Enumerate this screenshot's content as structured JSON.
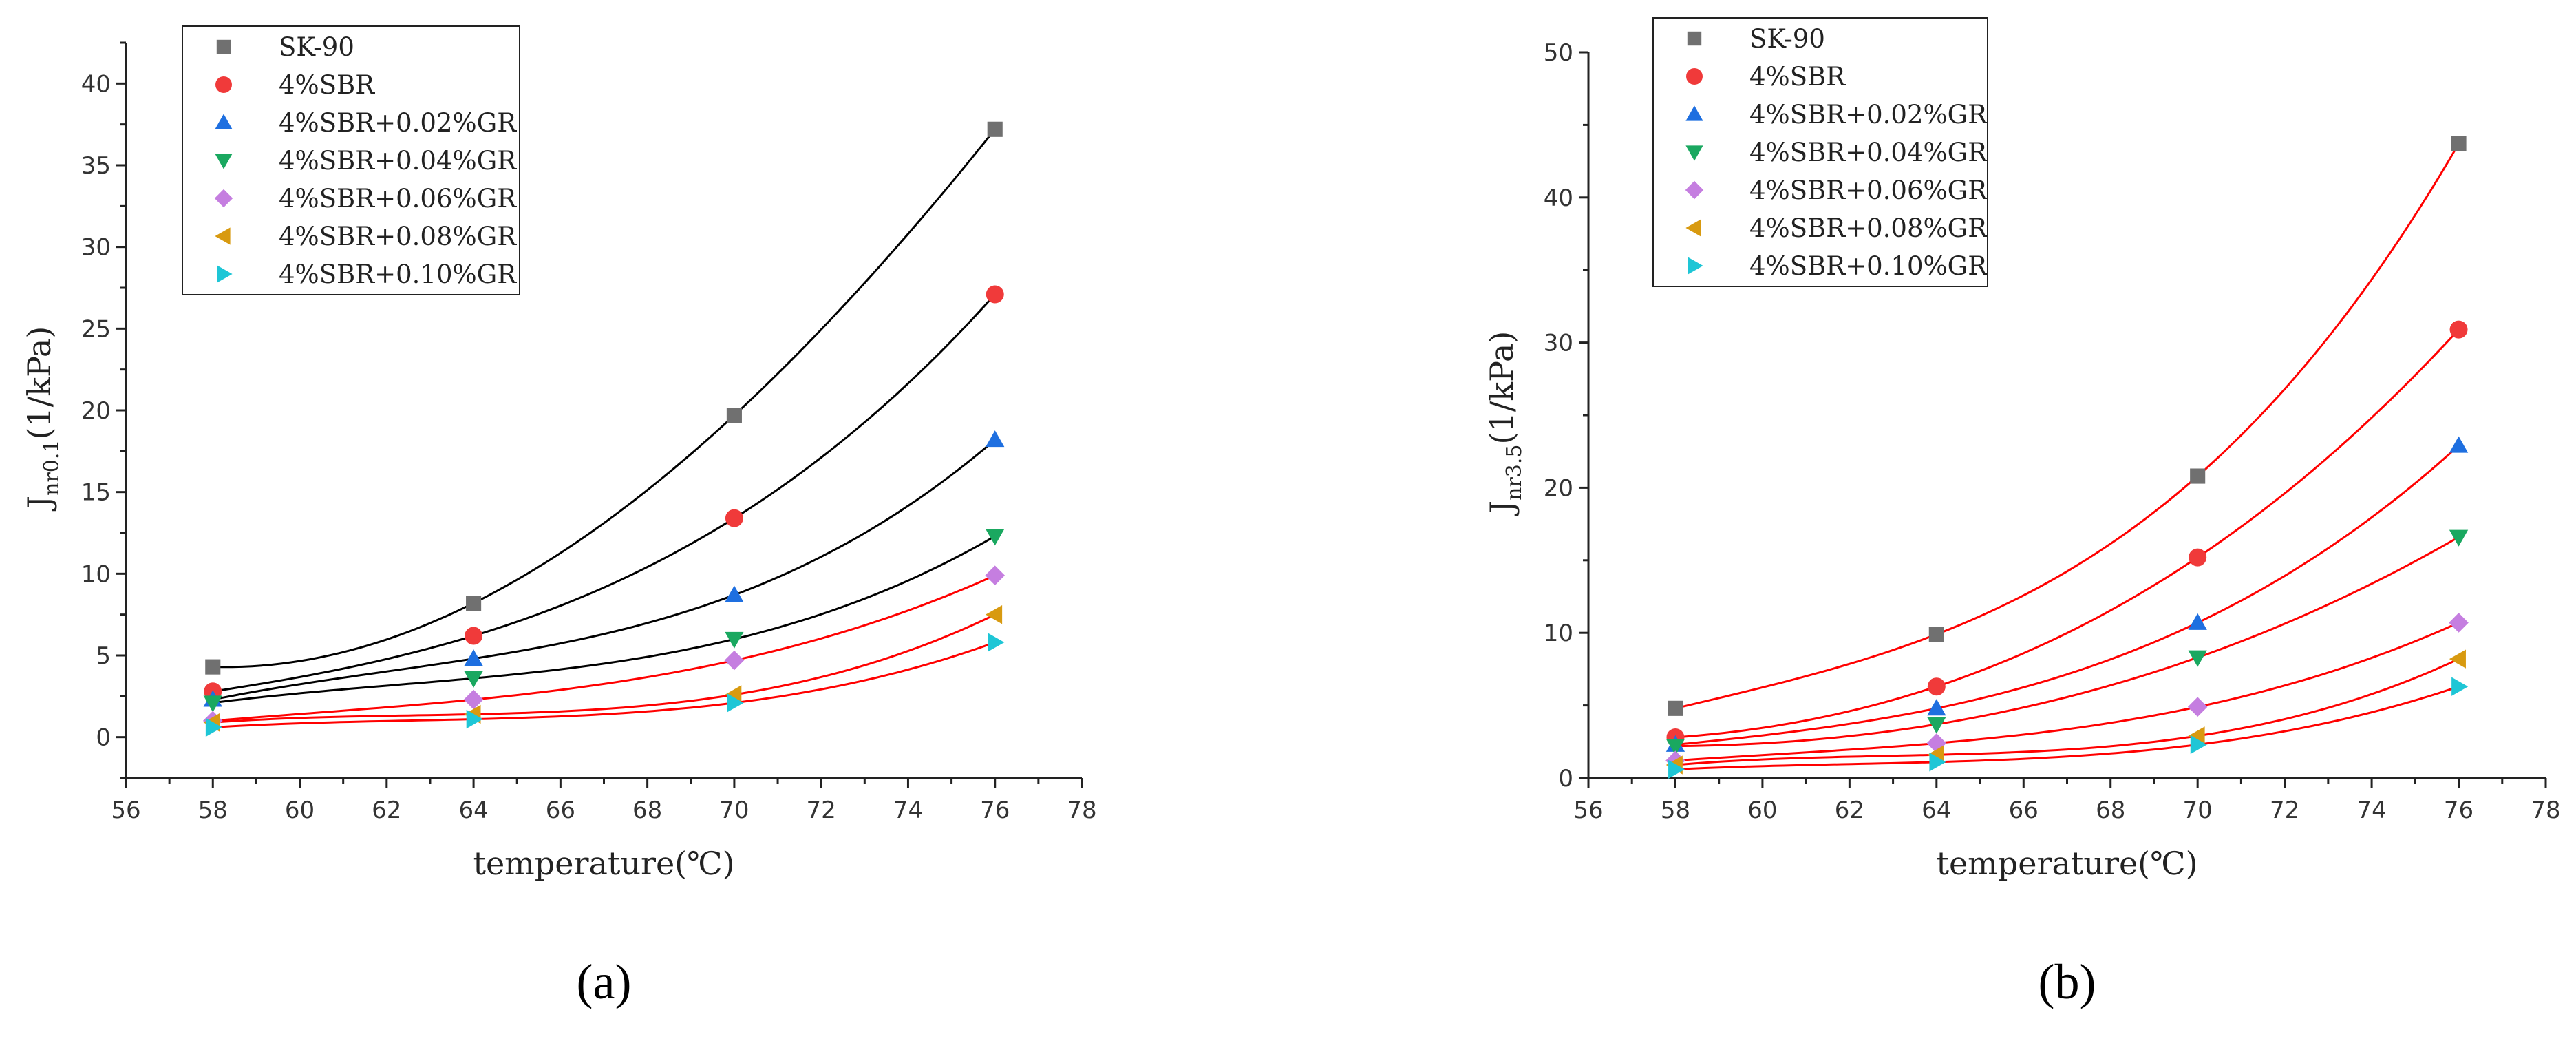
{
  "series_styles": [
    {
      "name": "SK-90",
      "marker": "square",
      "color": "#707070"
    },
    {
      "name": "4%SBR",
      "marker": "circle",
      "color": "#f03a3a"
    },
    {
      "name": "4%SBR+0.02%GR",
      "marker": "triangle-up",
      "color": "#1e6fe0"
    },
    {
      "name": "4%SBR+0.04%GR",
      "marker": "triangle-down",
      "color": "#1aa860"
    },
    {
      "name": "4%SBR+0.06%GR",
      "marker": "diamond",
      "color": "#c57ee0"
    },
    {
      "name": "4%SBR+0.08%GR",
      "marker": "triangle-left",
      "color": "#d89a10"
    },
    {
      "name": "4%SBR+0.10%GR",
      "marker": "triangle-right",
      "color": "#1ec6d6"
    }
  ],
  "chart_data": [
    {
      "type": "scatter",
      "panel_label": "(a)",
      "xlabel": "temperature(℃)",
      "ylabel_main": "J",
      "ylabel_sub": "nr0.1",
      "ylabel_unit": "(1/kPa)",
      "xlim": [
        56,
        78
      ],
      "ylim": [
        -2.5,
        42.5
      ],
      "xticks": [
        56,
        58,
        60,
        62,
        64,
        66,
        68,
        70,
        72,
        74,
        76,
        78
      ],
      "yticks": [
        0,
        5,
        10,
        15,
        20,
        25,
        30,
        35,
        40
      ],
      "legend_position": "top-left",
      "x": [
        58,
        64,
        70,
        76
      ],
      "series": [
        {
          "name": "SK-90",
          "values": [
            4.3,
            8.2,
            19.7,
            37.2
          ],
          "fit_color": "#000000"
        },
        {
          "name": "4%SBR",
          "values": [
            2.8,
            6.2,
            13.4,
            27.1
          ],
          "fit_color": "#000000"
        },
        {
          "name": "4%SBR+0.02%GR",
          "values": [
            2.3,
            4.8,
            8.7,
            18.2
          ],
          "fit_color": "#000000"
        },
        {
          "name": "4%SBR+0.04%GR",
          "values": [
            2.1,
            3.6,
            6.0,
            12.3
          ],
          "fit_color": "#000000"
        },
        {
          "name": "4%SBR+0.06%GR",
          "values": [
            1.0,
            2.3,
            4.7,
            9.9
          ],
          "fit_color": "#ff0000"
        },
        {
          "name": "4%SBR+0.08%GR",
          "values": [
            0.9,
            1.4,
            2.6,
            7.5
          ],
          "fit_color": "#ff0000"
        },
        {
          "name": "4%SBR+0.10%GR",
          "values": [
            0.6,
            1.1,
            2.1,
            5.8
          ],
          "fit_color": "#ff0000"
        }
      ]
    },
    {
      "type": "scatter",
      "panel_label": "(b)",
      "xlabel": "temperature(℃)",
      "ylabel_main": "J",
      "ylabel_sub": "nr3.5",
      "ylabel_unit": "(1/kPa)",
      "xlim": [
        56,
        78
      ],
      "ylim": [
        0,
        50
      ],
      "xticks": [
        56,
        58,
        60,
        62,
        64,
        66,
        68,
        70,
        72,
        74,
        76,
        78
      ],
      "yticks": [
        0,
        10,
        20,
        30,
        40,
        50
      ],
      "legend_position": "top-left",
      "x": [
        58,
        64,
        70,
        76
      ],
      "series": [
        {
          "name": "SK-90",
          "values": [
            4.8,
            9.9,
            20.8,
            43.7
          ],
          "fit_color": "#ff0000"
        },
        {
          "name": "4%SBR",
          "values": [
            2.8,
            6.3,
            15.2,
            30.9
          ],
          "fit_color": "#ff0000"
        },
        {
          "name": "4%SBR+0.02%GR",
          "values": [
            2.3,
            4.8,
            10.7,
            22.9
          ],
          "fit_color": "#ff0000"
        },
        {
          "name": "4%SBR+0.04%GR",
          "values": [
            2.2,
            3.7,
            8.3,
            16.6
          ],
          "fit_color": "#ff0000"
        },
        {
          "name": "4%SBR+0.06%GR",
          "values": [
            1.2,
            2.4,
            4.9,
            10.7
          ],
          "fit_color": "#ff0000"
        },
        {
          "name": "4%SBR+0.08%GR",
          "values": [
            0.9,
            1.6,
            2.9,
            8.2
          ],
          "fit_color": "#ff0000"
        },
        {
          "name": "4%SBR+0.10%GR",
          "values": [
            0.6,
            1.1,
            2.3,
            6.3
          ],
          "fit_color": "#ff0000"
        }
      ]
    }
  ]
}
